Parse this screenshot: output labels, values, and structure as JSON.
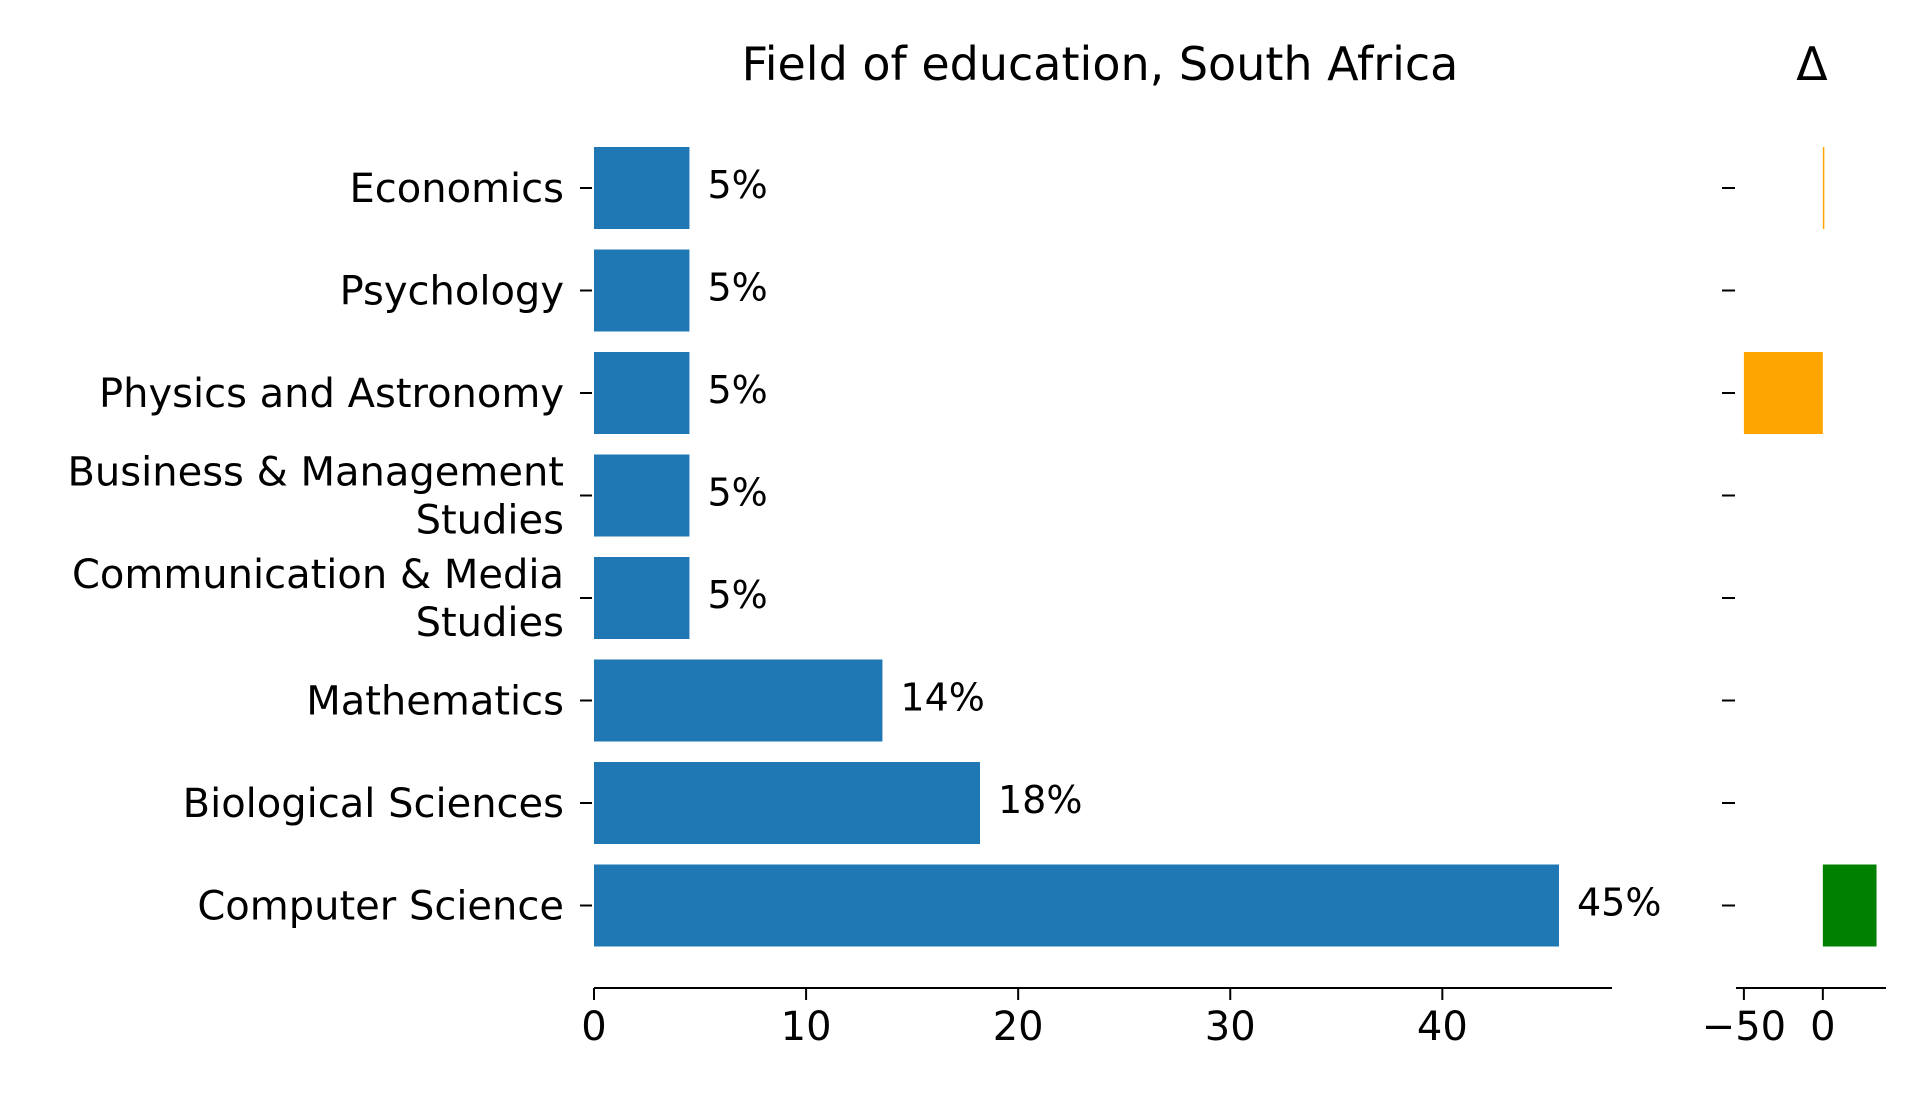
{
  "chart_data": {
    "type": "bar",
    "orientation": "horizontal",
    "title": "Field of education, South Africa",
    "delta_title": "Δ",
    "categories": [
      "Economics",
      "Psychology",
      "Physics and Astronomy",
      "Business & Management Studies",
      "Communication & Media Studies",
      "Mathematics",
      "Biological Sciences",
      "Computer Science"
    ],
    "category_lines": [
      [
        "Economics"
      ],
      [
        "Psychology"
      ],
      [
        "Physics and Astronomy"
      ],
      [
        "Business & Management",
        "Studies"
      ],
      [
        "Communication & Media",
        "Studies"
      ],
      [
        "Mathematics"
      ],
      [
        "Biological Sciences"
      ],
      [
        "Computer Science"
      ]
    ],
    "values": [
      4.5,
      4.5,
      4.5,
      4.5,
      4.5,
      13.6,
      18.2,
      45.5
    ],
    "value_labels": [
      "5%",
      "5%",
      "5%",
      "5%",
      "5%",
      "14%",
      "18%",
      "45%"
    ],
    "xlim": [
      0,
      48
    ],
    "xticks": [
      0,
      10,
      20,
      30,
      40
    ],
    "xtick_labels": [
      "0",
      "10",
      "20",
      "30",
      "40"
    ],
    "delta_values": [
      0.5,
      0,
      -50,
      0,
      0,
      0,
      0,
      34
    ],
    "delta_xlim": [
      -55,
      40
    ],
    "delta_xticks": [
      -50,
      0
    ],
    "delta_xtick_labels": [
      "−50",
      "0"
    ],
    "grid": false,
    "legend": "none",
    "colors": {
      "bar": "#1f77b4",
      "delta_positive": "#008000",
      "delta_negative": "#FFA500",
      "axis": "#000000"
    }
  }
}
